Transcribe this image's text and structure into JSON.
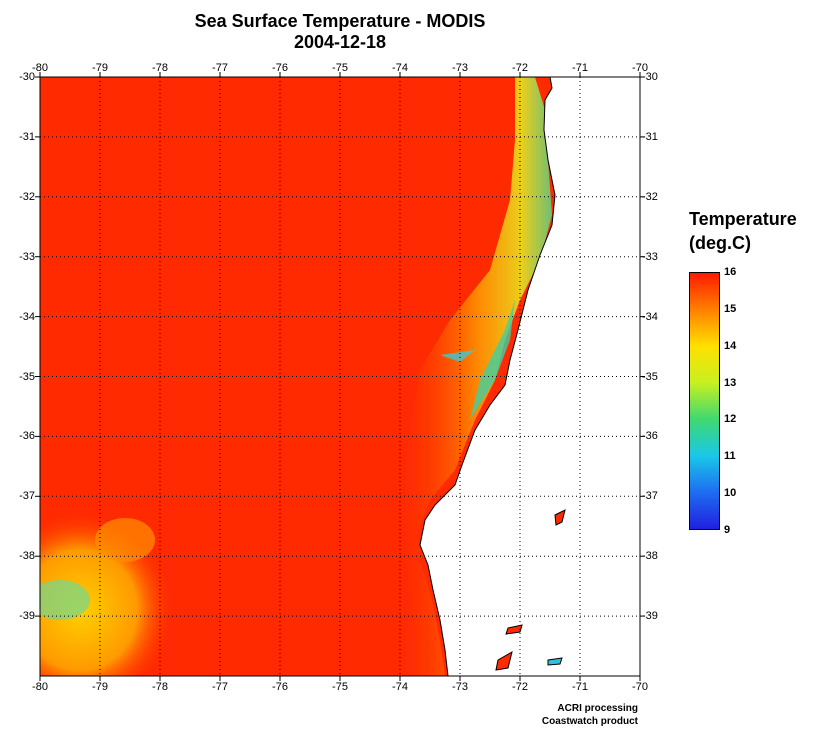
{
  "title": {
    "line1": "Sea Surface Temperature - MODIS",
    "line2": "2004-12-18"
  },
  "map": {
    "lon_range": [
      -80,
      -70
    ],
    "lat_range": [
      -40,
      -30
    ],
    "lon_ticks": [
      "-80",
      "-79",
      "-78",
      "-77",
      "-76",
      "-75",
      "-74",
      "-73",
      "-72",
      "-71",
      "-70"
    ],
    "lat_ticks": [
      "-30",
      "-31",
      "-32",
      "-33",
      "-34",
      "-35",
      "-36",
      "-37",
      "-38",
      "-39"
    ],
    "grid": "dotted",
    "land_color": "#ffffff",
    "ocean_base_color": "#ff2a00"
  },
  "legend": {
    "title_line1": "Temperature",
    "title_line2": "(deg.C)",
    "labels": [
      "16",
      "15",
      "14",
      "13",
      "12",
      "11",
      "10",
      "9"
    ],
    "range": [
      9,
      16
    ],
    "colors": [
      "#2020e0",
      "#1e6cf0",
      "#19c8e8",
      "#40d870",
      "#c8f020",
      "#ffe000",
      "#ff8000",
      "#ff1a00"
    ]
  },
  "credits": {
    "line1": "ACRI processing",
    "line2": "Coastwatch product"
  }
}
